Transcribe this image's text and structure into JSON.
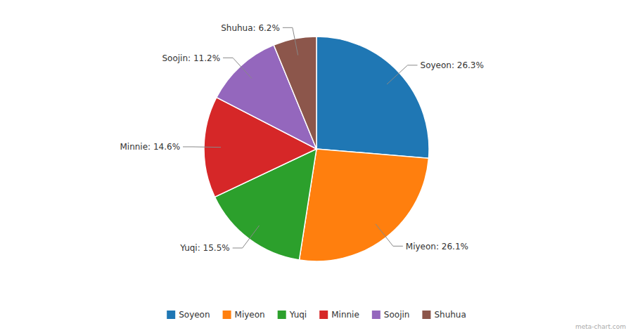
{
  "chart_data": {
    "type": "pie",
    "categories": [
      "Soyeon",
      "Miyeon",
      "Yuqi",
      "Minnie",
      "Soojin",
      "Shuhua"
    ],
    "values": [
      26.3,
      26.1,
      15.5,
      14.6,
      11.2,
      6.2
    ],
    "value_labels": [
      "Soyeon: 26.3%",
      "Miyeon: 26.1%",
      "Yuqi: 15.5%",
      "Minnie: 14.6%",
      "Soojin: 11.2%",
      "Shuhua: 6.2%"
    ],
    "data_labels": true,
    "legend": "bottom",
    "annotations": [
      "meta-chart.com"
    ]
  }
}
